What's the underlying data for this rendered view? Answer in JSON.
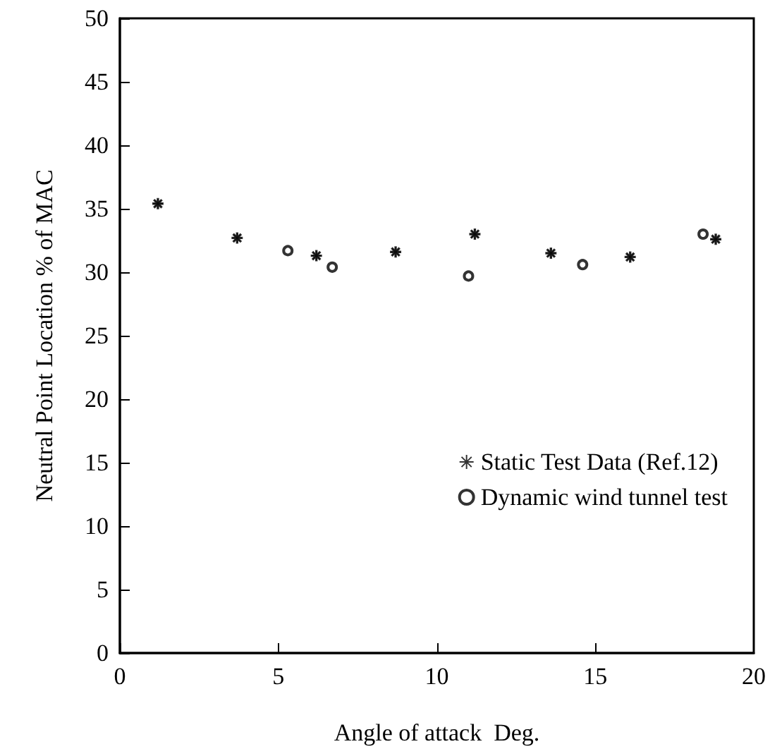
{
  "chart_data": {
    "type": "scatter",
    "xlabel": "Angle of attack  Deg.",
    "ylabel": "Neutral Point Location % of MAC",
    "xlim": [
      0,
      20
    ],
    "xticks": [
      0,
      5,
      10,
      15,
      20
    ],
    "ylim": [
      0,
      50
    ],
    "yticks": [
      0,
      5,
      10,
      15,
      20,
      25,
      30,
      35,
      40,
      45,
      50
    ],
    "grid": false,
    "legend": "bottom right",
    "series": [
      {
        "name": "Static Test Data (Ref.12)",
        "color": "#000000",
        "marker": "star",
        "x": [
          1.2,
          3.7,
          6.2,
          8.7,
          11.2,
          13.6,
          16.1,
          18.8
        ],
        "values": [
          35.4,
          32.7,
          31.3,
          31.6,
          33.0,
          31.5,
          31.2,
          32.6
        ]
      },
      {
        "name": "Dynamic wind tunnel test",
        "color": "#000000",
        "marker": "circle",
        "x": [
          5.3,
          6.7,
          11.0,
          14.6,
          18.4
        ],
        "values": [
          31.7,
          30.4,
          29.7,
          30.6,
          33.0
        ]
      }
    ]
  }
}
